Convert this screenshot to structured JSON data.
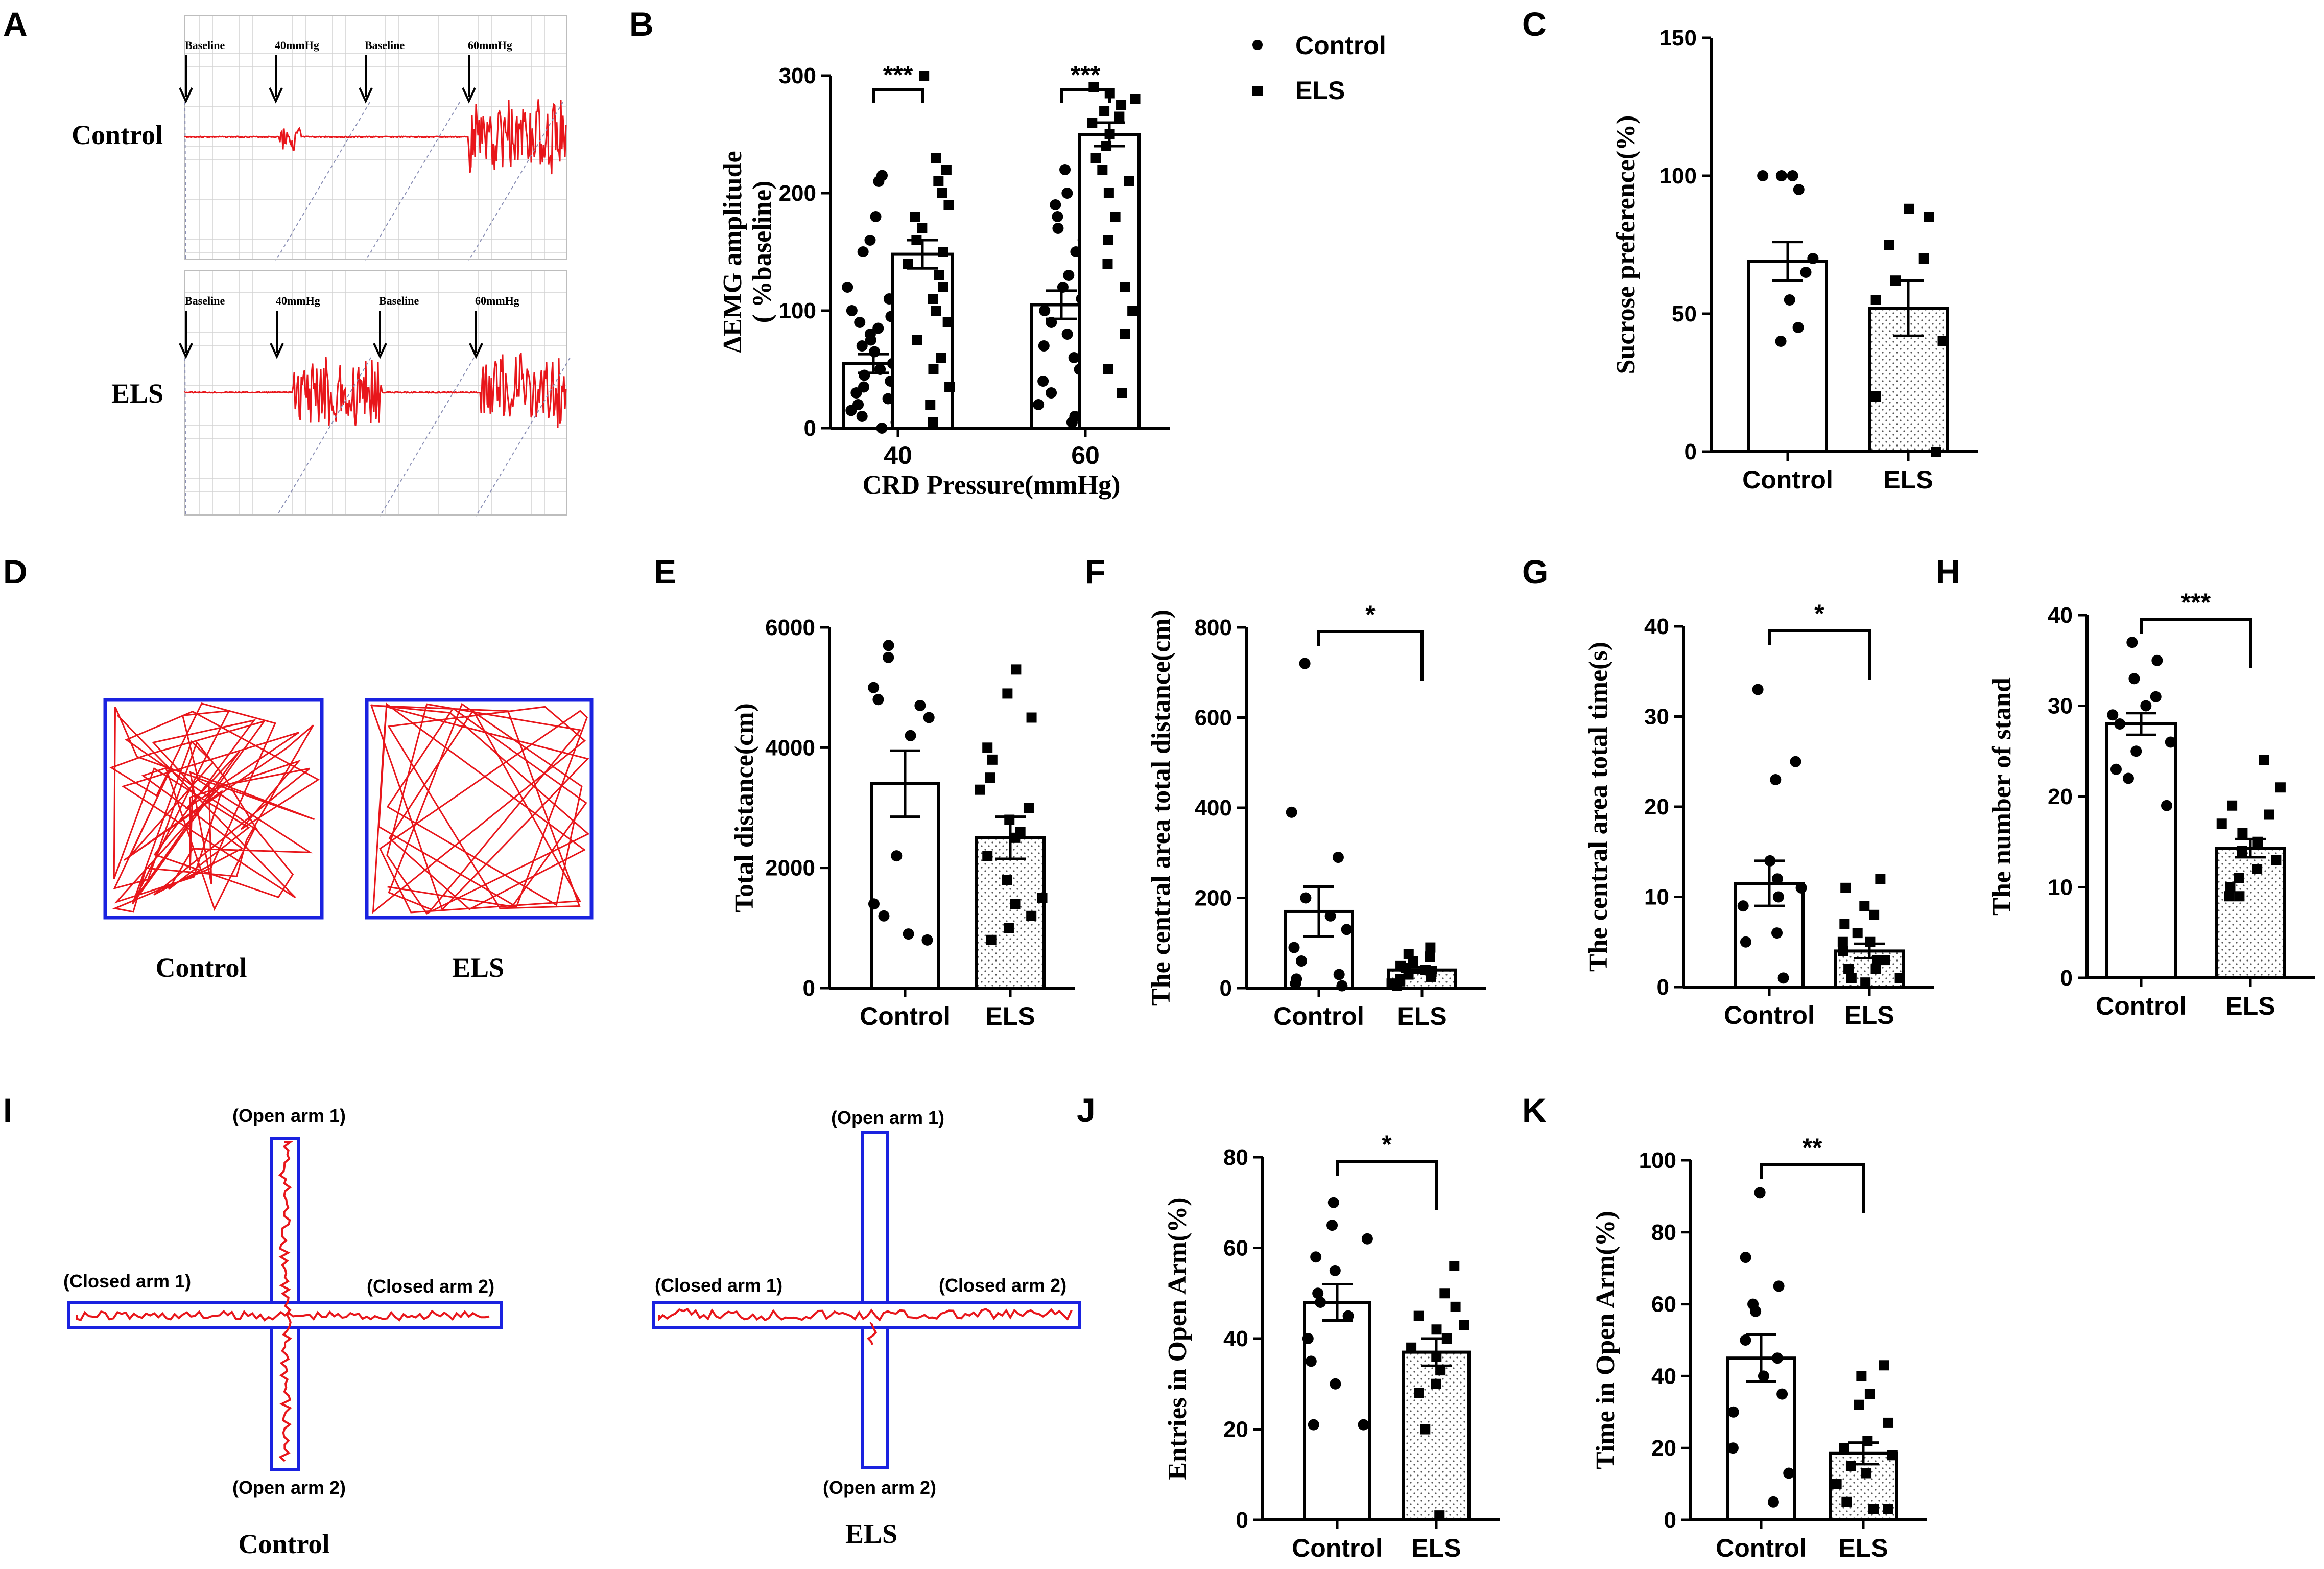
{
  "colors": {
    "trace": "#e8161b",
    "arena": "#1a22e0",
    "axis": "#000000",
    "grid": "#cfcfcf"
  },
  "panel_labels": [
    "A",
    "B",
    "C",
    "D",
    "E",
    "F",
    "G",
    "H",
    "I",
    "J",
    "K"
  ],
  "panel_a": {
    "groups": [
      "Control",
      "ELS"
    ],
    "markers": [
      "Baseline",
      "40mmHg",
      "Baseline",
      "60mmHg"
    ]
  },
  "panel_d": {
    "labels": [
      "Control",
      "ELS"
    ]
  },
  "panel_i": {
    "labels": [
      "Control",
      "ELS"
    ],
    "arms": {
      "open1": "(Open arm 1)",
      "open2": "(Open arm 2)",
      "closed1": "(Closed arm 1)",
      "closed2": "(Closed arm 2)"
    }
  },
  "chart_data": [
    {
      "id": "B",
      "type": "bar",
      "ylabel": [
        "ΔEMG amplitude",
        "( %baseline)"
      ],
      "xlabel": "CRD Pressure(mmHg)",
      "categories": [
        "40",
        "60"
      ],
      "ylim": [
        0,
        300
      ],
      "yticks": [
        0,
        100,
        200,
        300
      ],
      "legend": [
        "Control",
        "ELS"
      ],
      "series": [
        {
          "name": "Control",
          "means": [
            55,
            105
          ],
          "sems": [
            8,
            12
          ],
          "points": [
            [
              0,
              5,
              10,
              15,
              20,
              25,
              30,
              35,
              40,
              45,
              50,
              55,
              60,
              65,
              70,
              75,
              80,
              85,
              90,
              95,
              100,
              110,
              120,
              150,
              160,
              180,
              210,
              215
            ],
            [
              5,
              10,
              20,
              30,
              40,
              50,
              60,
              70,
              80,
              90,
              100,
              110,
              120,
              130,
              140,
              150,
              160,
              170,
              180,
              190,
              200,
              210,
              220
            ]
          ]
        },
        {
          "name": "ELS",
          "means": [
            148,
            250
          ],
          "sems": [
            12,
            10
          ],
          "points": [
            [
              5,
              20,
              35,
              50,
              60,
              75,
              90,
              100,
              110,
              120,
              130,
              140,
              150,
              160,
              170,
              180,
              190,
              200,
              210,
              220,
              230,
              300
            ],
            [
              30,
              50,
              80,
              100,
              120,
              140,
              160,
              180,
              200,
              210,
              220,
              230,
              240,
              250,
              260,
              265,
              270,
              275,
              280,
              285,
              290
            ]
          ]
        }
      ],
      "significance": [
        "***",
        "***"
      ]
    },
    {
      "id": "C",
      "type": "bar",
      "ylabel": "Sucrose preference(%)",
      "categories": [
        "Control",
        "ELS"
      ],
      "ylim": [
        0,
        150
      ],
      "yticks": [
        0,
        50,
        100,
        150
      ],
      "means": [
        69,
        52
      ],
      "sems": [
        7,
        10
      ],
      "points": [
        [
          100,
          100,
          100,
          95,
          70,
          65,
          55,
          45,
          40
        ],
        [
          88,
          85,
          75,
          70,
          62,
          55,
          40,
          20,
          0
        ]
      ]
    },
    {
      "id": "E",
      "type": "bar",
      "ylabel": "Total distance(cm)",
      "categories": [
        "Control",
        "ELS"
      ],
      "ylim": [
        0,
        6000
      ],
      "yticks": [
        0,
        2000,
        4000,
        6000
      ],
      "means": [
        3400,
        2500
      ],
      "sems": [
        550,
        350
      ],
      "points": [
        [
          5700,
          5500,
          5000,
          4800,
          4700,
          4500,
          4200,
          2200,
          1400,
          1200,
          900,
          800
        ],
        [
          5300,
          4900,
          4500,
          4000,
          3800,
          3500,
          3300,
          3000,
          2800,
          2600,
          2500,
          2200,
          1800,
          1500,
          1400,
          1200,
          1000,
          800,
          800
        ]
      ]
    },
    {
      "id": "F",
      "type": "bar",
      "ylabel": "The central area total distance(cm)",
      "categories": [
        "Control",
        "ELS"
      ],
      "ylim": [
        0,
        800
      ],
      "yticks": [
        0,
        200,
        400,
        600,
        800
      ],
      "means": [
        170,
        40
      ],
      "sems": [
        55,
        6
      ],
      "points": [
        [
          720,
          390,
          290,
          200,
          160,
          130,
          90,
          60,
          30,
          20,
          10,
          5
        ],
        [
          90,
          75,
          70,
          60,
          50,
          45,
          40,
          35,
          30,
          25,
          20,
          15,
          10,
          5
        ]
      ],
      "significance": "*"
    },
    {
      "id": "G",
      "type": "bar",
      "ylabel": "The central area total time(s)",
      "categories": [
        "Control",
        "ELS"
      ],
      "ylim": [
        0,
        40
      ],
      "yticks": [
        0,
        10,
        20,
        30,
        40
      ],
      "means": [
        11.5,
        4
      ],
      "sems": [
        2.5,
        0.8
      ],
      "points": [
        [
          33,
          25,
          23,
          14,
          12,
          11,
          10,
          9,
          6,
          5,
          1
        ],
        [
          12,
          11,
          9,
          8,
          7,
          6,
          5,
          5,
          4,
          3,
          3,
          2,
          2,
          1,
          1,
          0.5
        ]
      ],
      "significance": "*"
    },
    {
      "id": "H",
      "type": "bar",
      "ylabel": "The number of stand",
      "categories": [
        "Control",
        "ELS"
      ],
      "ylim": [
        0,
        40
      ],
      "yticks": [
        0,
        10,
        20,
        30,
        40
      ],
      "means": [
        28,
        14.3
      ],
      "sems": [
        1.2,
        1
      ],
      "points": [
        [
          37,
          35,
          33,
          31,
          30,
          29,
          28,
          26,
          25,
          23,
          22,
          19
        ],
        [
          24,
          21,
          19,
          18,
          17,
          16,
          15,
          14,
          13,
          12,
          11,
          10,
          9,
          9
        ]
      ],
      "significance": "***"
    },
    {
      "id": "J",
      "type": "bar",
      "ylabel": "Entries in Open Arm(%)",
      "categories": [
        "Control",
        "ELS"
      ],
      "ylim": [
        0,
        80
      ],
      "yticks": [
        0,
        20,
        40,
        60,
        80
      ],
      "means": [
        48,
        37
      ],
      "sems": [
        4,
        3
      ],
      "points": [
        [
          70,
          65,
          62,
          58,
          55,
          50,
          48,
          45,
          40,
          35,
          30,
          21,
          21
        ],
        [
          56,
          50,
          47,
          45,
          43,
          42,
          40,
          38,
          36,
          33,
          30,
          28,
          20,
          1
        ]
      ],
      "significance": "*"
    },
    {
      "id": "K",
      "type": "bar",
      "ylabel": "Time in Open Arm(%)",
      "categories": [
        "Control",
        "ELS"
      ],
      "ylim": [
        0,
        100
      ],
      "yticks": [
        0,
        20,
        40,
        60,
        80,
        100
      ],
      "means": [
        45,
        18.5
      ],
      "sems": [
        6.5,
        3
      ],
      "points": [
        [
          91,
          73,
          65,
          60,
          58,
          50,
          45,
          40,
          35,
          30,
          20,
          13,
          5
        ],
        [
          43,
          40,
          35,
          32,
          27,
          22,
          20,
          18,
          15,
          13,
          10,
          5,
          3,
          3
        ]
      ],
      "significance": "**"
    }
  ]
}
